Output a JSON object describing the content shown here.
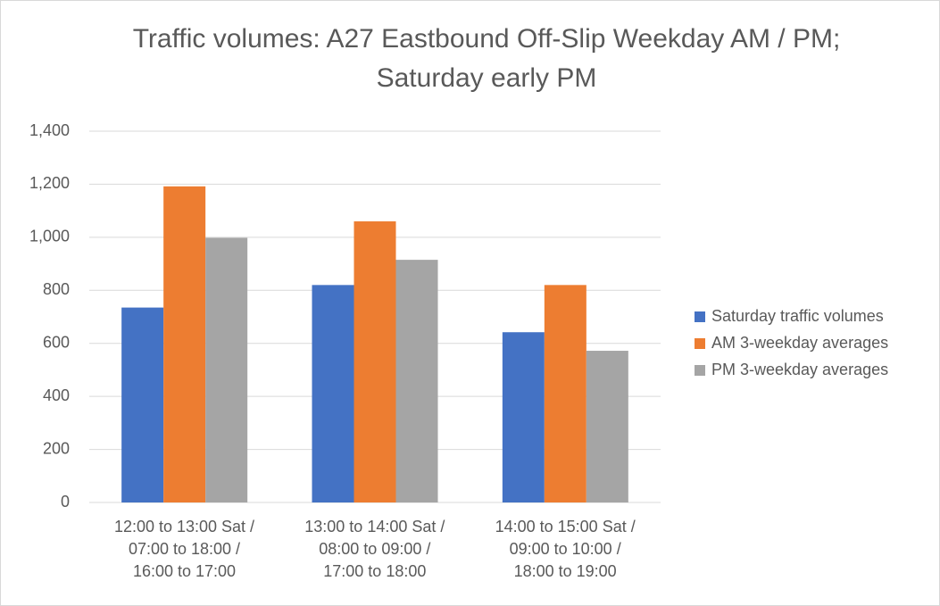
{
  "chart_data": {
    "type": "bar",
    "title": "Traffic volumes: A27 Eastbound Off-Slip Weekday AM / PM; Saturday early PM",
    "categories": [
      "12:00 to 13:00 Sat /\n07:00 to 18:00 /\n16:00 to 17:00",
      "13:00 to 14:00 Sat /\n08:00 to 09:00 /\n17:00 to 18:00",
      "14:00 to 15:00 Sat /\n09:00 to 10:00 /\n18:00 to 19:00"
    ],
    "series": [
      {
        "name": "Saturday traffic volumes",
        "color": "#4472c4",
        "values": [
          735,
          820,
          642
        ]
      },
      {
        "name": "AM 3-weekday averages",
        "color": "#ed7d31",
        "values": [
          1192,
          1060,
          820
        ]
      },
      {
        "name": "PM 3-weekday averages",
        "color": "#a5a5a5",
        "values": [
          998,
          915,
          572
        ]
      }
    ],
    "ylim": [
      0,
      1400
    ],
    "yticks": [
      0,
      200,
      400,
      600,
      800,
      {
        "value": 1000,
        "label": "1,000"
      },
      {
        "value": 1200,
        "label": "1,200"
      },
      {
        "value": 1400,
        "label": "1,400"
      }
    ],
    "grid": true,
    "legend": "right"
  }
}
